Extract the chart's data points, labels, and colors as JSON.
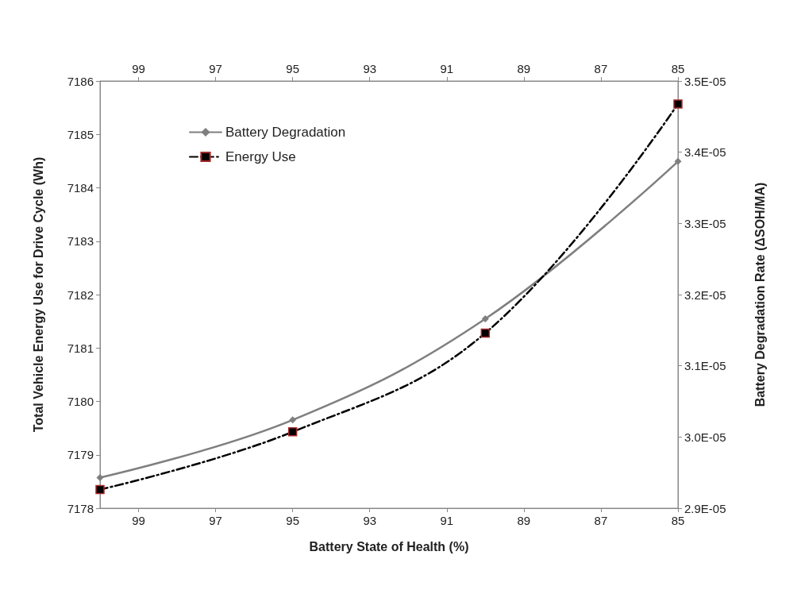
{
  "chart_data": {
    "type": "line",
    "xlabel": "Battery State of Health (%)",
    "ylabel": "Total Vehicle Energy Use for Drive Cycle (Wh)",
    "y2label": "Battery Degradation Rate (ΔSOH/MA)",
    "x": [
      100,
      95,
      90,
      85
    ],
    "xlim": [
      100,
      85
    ],
    "xticks": [
      99,
      97,
      95,
      93,
      91,
      89,
      87,
      85
    ],
    "x2lim": [
      100,
      85
    ],
    "x2ticks": [
      99,
      97,
      95,
      93,
      91,
      89,
      87,
      85
    ],
    "ylim": [
      7178,
      7186
    ],
    "yticks": [
      7178,
      7179,
      7180,
      7181,
      7182,
      7183,
      7184,
      7185,
      7186
    ],
    "y2lim": [
      2.9e-05,
      3.5e-05
    ],
    "y2ticks": [
      {
        "value": 2.9e-05,
        "label": "2.9E-05"
      },
      {
        "value": 3e-05,
        "label": "3.0E-05"
      },
      {
        "value": 3.1e-05,
        "label": "3.1E-05"
      },
      {
        "value": 3.2e-05,
        "label": "3.2E-05"
      },
      {
        "value": 3.3e-05,
        "label": "3.3E-05"
      },
      {
        "value": 3.4e-05,
        "label": "3.4E-05"
      },
      {
        "value": 3.5e-05,
        "label": "3.5E-05"
      }
    ],
    "series": [
      {
        "name": "Battery Degradation",
        "color": "#7f7f7f",
        "axis": "y2",
        "marker": "diamond",
        "line_style": "solid",
        "values": [
          2.943e-05,
          3.024e-05,
          3.166e-05,
          3.387e-05
        ]
      },
      {
        "name": "Energy Use",
        "color": "#000000",
        "marker": "square",
        "line_style": "dashed",
        "values": [
          7178.35,
          7179.43,
          7181.28,
          7185.57
        ]
      }
    ],
    "legend": "top left",
    "grid": false
  }
}
